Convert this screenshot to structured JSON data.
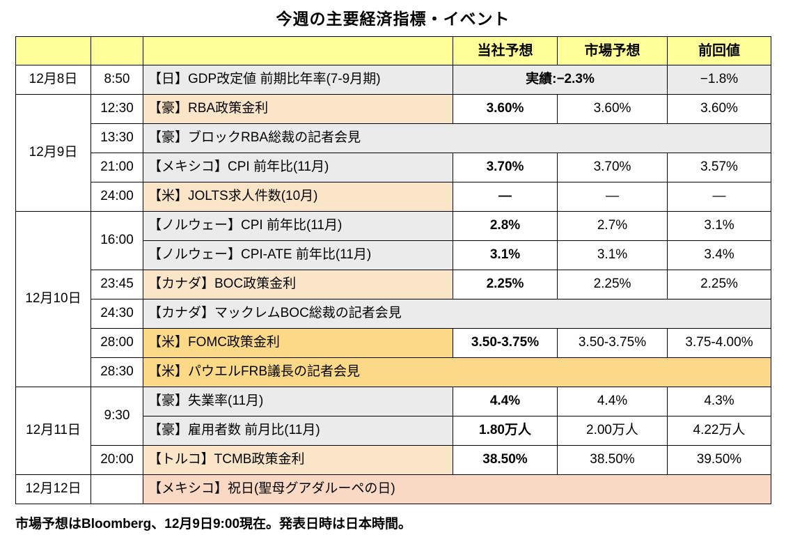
{
  "title": "今週の主要経済指標・イベント",
  "footnote": "市場予想はBloomberg、12月9日9:00現在。発表日時は日本時間。",
  "colors": {
    "header_yellow": "#FFFF99",
    "row_gray": "#EBEBEB",
    "highlight_peach": "#FBE5C9",
    "highlight_gold": "#FBD986",
    "highlight_salmon": "#F9D8C4"
  },
  "table": {
    "headers": {
      "date": "",
      "time": "",
      "event": "",
      "our": "当社予想",
      "market": "市場予想",
      "previous": "前回値"
    },
    "rows": [
      {
        "date": "12月8日",
        "time": "8:50",
        "event": "【日】GDP改定値 前期比年率(7-9月期)",
        "kind": "released",
        "actual": "実績:−2.3%",
        "previous": "−1.8%"
      },
      {
        "date": "12月9日",
        "time": "12:30",
        "event": "【豪】RBA政策金利",
        "hl": "peach",
        "our": "3.60%",
        "market": "3.60%",
        "previous": "3.60%"
      },
      {
        "time": "13:30",
        "event": "【豪】ブロックRBA総裁の記者会見",
        "kind": "span"
      },
      {
        "time": "21:00",
        "event": "【メキシコ】CPI 前年比(11月)",
        "our": "3.70%",
        "market": "3.70%",
        "previous": "3.57%"
      },
      {
        "time": "24:00",
        "event": "【米】JOLTS求人件数(10月)",
        "hl": "peach",
        "our": "―",
        "market": "―",
        "previous": "―"
      },
      {
        "date": "12月10日",
        "time": "16:00",
        "event": "【ノルウェー】CPI 前年比(11月)",
        "our": "2.8%",
        "market": "2.7%",
        "previous": "3.1%"
      },
      {
        "event": "【ノルウェー】CPI-ATE 前年比(11月)",
        "our": "3.1%",
        "market": "3.1%",
        "previous": "3.4%"
      },
      {
        "time": "23:45",
        "event": "【カナダ】BOC政策金利",
        "hl": "peach",
        "our": "2.25%",
        "market": "2.25%",
        "previous": "2.25%"
      },
      {
        "time": "24:30",
        "event": "【カナダ】マックレムBOC総裁の記者会見",
        "kind": "span"
      },
      {
        "time": "28:00",
        "event": "【米】FOMC政策金利",
        "hl": "gold",
        "our": "3.50-3.75%",
        "market": "3.50-3.75%",
        "previous": "3.75-4.00%"
      },
      {
        "time": "28:30",
        "event": "【米】パウエルFRB議長の記者会見",
        "kind": "span",
        "hl": "gold"
      },
      {
        "date": "12月11日",
        "time": "9:30",
        "event": "【豪】失業率(11月)",
        "our": "4.4%",
        "market": "4.4%",
        "previous": "4.3%"
      },
      {
        "event": "【豪】雇用者数 前月比(11月)",
        "our": "1.80万人",
        "market": "2.00万人",
        "previous": "4.22万人"
      },
      {
        "time": "20:00",
        "event": "【トルコ】TCMB政策金利",
        "hl": "peach",
        "our": "38.50%",
        "market": "38.50%",
        "previous": "39.50%"
      },
      {
        "date": "12月12日",
        "time": "",
        "event": "【メキシコ】祝日(聖母グアダルーペの日)",
        "kind": "span",
        "hl": "salmon"
      }
    ]
  }
}
